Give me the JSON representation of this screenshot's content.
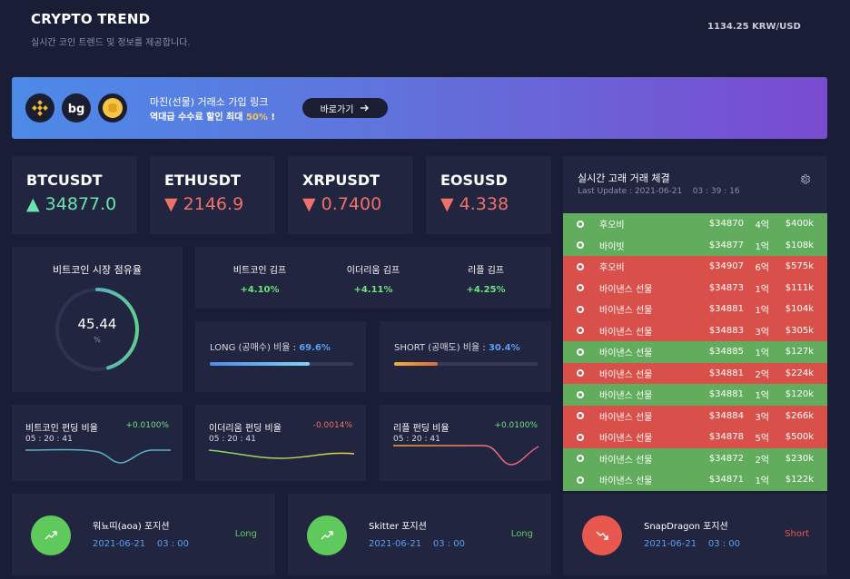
{
  "header": {
    "title": "CRYPTO TREND",
    "subtitle": "실시간 코인 트렌드 및 정보를 제공합니다.",
    "rate": "1134.25 KRW/USD"
  },
  "banner": {
    "logos": [
      "binance-logo",
      "bitget-logo",
      "coin-logo"
    ],
    "line1": "마진(선물) 거래소 가입 링크",
    "line2_prefix": "역대급 수수료 할인 최대 ",
    "line2_highlight": "50%",
    "line2_suffix": " !",
    "button_label": "바로가기",
    "button_icon": "arrow-right-icon"
  },
  "tickers": [
    {
      "name": "BTCUSDT",
      "arrow": "▲",
      "value": "34877.0",
      "direction": "up"
    },
    {
      "name": "ETHUSDT",
      "arrow": "▼",
      "value": "2146.9",
      "direction": "down"
    },
    {
      "name": "XRPUSDT",
      "arrow": "▼",
      "value": "0.7400",
      "direction": "down"
    },
    {
      "name": "EOSUSD",
      "arrow": "▼",
      "value": "4.338",
      "direction": "down"
    }
  ],
  "dominance": {
    "title": "비트코인 시장 점유율",
    "value": "45.44",
    "unit": "%",
    "fraction": 0.4544
  },
  "kimp": [
    {
      "name": "비트코인 김프",
      "value": "+4.10%"
    },
    {
      "name": "이더리움 김프",
      "value": "+4.11%"
    },
    {
      "name": "리플 김프",
      "value": "+4.25%"
    }
  ],
  "ratios": {
    "long": {
      "label": "LONG (공매수) 비율 : ",
      "pct": "69.6%",
      "fraction": 0.696
    },
    "short": {
      "label": "SHORT (공매도) 비율 : ",
      "pct": "30.4%",
      "fraction": 0.304
    }
  },
  "funding": [
    {
      "name": "비트코인 펀딩 비율",
      "pct": "+0.0100%",
      "time": "05 : 20 : 41",
      "direction": "up"
    },
    {
      "name": "이더리움 펀딩 비율",
      "pct": "-0.0014%",
      "time": "05 : 20 : 41",
      "direction": "down"
    },
    {
      "name": "리플 펀딩 비율",
      "pct": "+0.0100%",
      "time": "05 : 20 : 41",
      "direction": "up"
    }
  ],
  "whale": {
    "title": "실시간 고래 거래 체결",
    "last_update": "Last Update : 2021-06-21    03 : 39 : 16",
    "settings_icon": "gear-icon",
    "rows": [
      {
        "exchange": "후오비",
        "price": "$34870",
        "qty": "4억",
        "amount": "$400k",
        "side": "buy"
      },
      {
        "exchange": "바이빗",
        "price": "$34877",
        "qty": "1억",
        "amount": "$108k",
        "side": "buy"
      },
      {
        "exchange": "후오비",
        "price": "$34907",
        "qty": "6억",
        "amount": "$575k",
        "side": "sell"
      },
      {
        "exchange": "바이낸스 선물",
        "price": "$34873",
        "qty": "1억",
        "amount": "$111k",
        "side": "sell"
      },
      {
        "exchange": "바이낸스 선물",
        "price": "$34881",
        "qty": "1억",
        "amount": "$104k",
        "side": "sell"
      },
      {
        "exchange": "바이낸스 선물",
        "price": "$34883",
        "qty": "3억",
        "amount": "$305k",
        "side": "sell"
      },
      {
        "exchange": "바이낸스 선물",
        "price": "$34885",
        "qty": "1억",
        "amount": "$127k",
        "side": "buy"
      },
      {
        "exchange": "바이낸스 선물",
        "price": "$34881",
        "qty": "2억",
        "amount": "$224k",
        "side": "sell"
      },
      {
        "exchange": "바이낸스 선물",
        "price": "$34881",
        "qty": "1억",
        "amount": "$120k",
        "side": "buy"
      },
      {
        "exchange": "바이낸스 선물",
        "price": "$34884",
        "qty": "3억",
        "amount": "$266k",
        "side": "sell"
      },
      {
        "exchange": "바이낸스 선물",
        "price": "$34878",
        "qty": "5억",
        "amount": "$500k",
        "side": "sell"
      },
      {
        "exchange": "바이낸스 선물",
        "price": "$34872",
        "qty": "2억",
        "amount": "$230k",
        "side": "buy"
      },
      {
        "exchange": "바이낸스 선물",
        "price": "$34871",
        "qty": "1억",
        "amount": "$122k",
        "side": "buy"
      }
    ]
  },
  "positions": [
    {
      "name": "워뇨띠(aoa) 포지션",
      "date": "2021-06-21    03 : 00",
      "side": "Long",
      "icon": "trend-up-icon"
    },
    {
      "name": "Skitter 포지션",
      "date": "2021-06-21    03 : 00",
      "side": "Long",
      "icon": "trend-up-icon"
    },
    {
      "name": "SnapDragon 포지션",
      "date": "2021-06-21    03 : 00",
      "side": "Short",
      "icon": "trend-down-icon"
    }
  ],
  "colors": {
    "background": "#1a1d36",
    "card": "#21253f",
    "up": "#6be5b0",
    "down": "#f0706a",
    "buy_row": "#62ad5d",
    "sell_row": "#d9504a",
    "long": "#5fc95c",
    "short": "#e8584f",
    "accent_blue": "#5c9ef0"
  }
}
